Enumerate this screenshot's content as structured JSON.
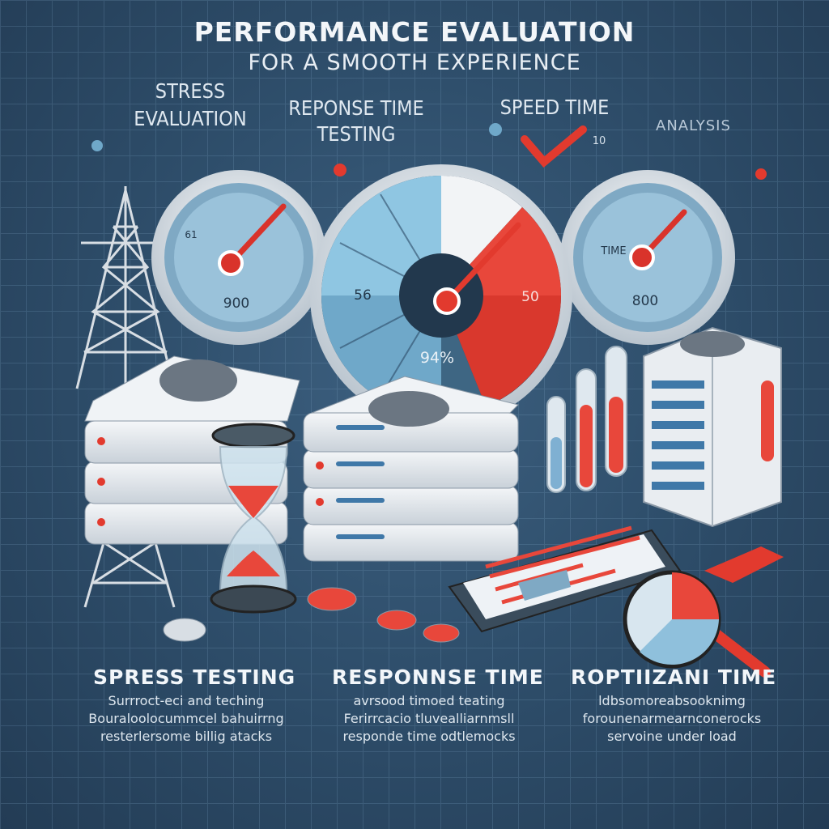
{
  "header": {
    "title": "PERFORMANCE EVALUATION",
    "subtitle": "FOR A SMOOTH EXPERIENCE"
  },
  "top_labels": {
    "stress_line1": "STRESS",
    "stress_line2": "EVALUATION",
    "response_line1": "REPONSE TIME",
    "response_line2": "TESTING",
    "speed": "SPEED TIME",
    "analysis": "ANALYSIS",
    "speed_small": "10"
  },
  "gauges": {
    "left_reading": "900",
    "left_tick": "61",
    "center_left": "56",
    "center_right": "50",
    "center_percent": "94%",
    "right_reading": "800",
    "right_label": "TIME"
  },
  "columns": [
    {
      "title": "SPRESS TESTING",
      "lines": [
        "Surrroct-eci and teching",
        "Bouraloolocummcel bahuirrng",
        "resterlersome billig atacks"
      ]
    },
    {
      "title": "RESPONNSE TIME",
      "lines": [
        "avrsood timoed teating",
        "Ferirrcacio tluvealliarnmsll",
        "responde time odtlemocks"
      ]
    },
    {
      "title": "ROPTIIZANI TIME",
      "lines": [
        "ldbsomoreabsooknimg",
        "forounenarmearnconerocks",
        "servoine under load"
      ]
    }
  ],
  "colors": {
    "background": "#2f4f6c",
    "accent_red": "#e8473b",
    "gauge_blue": "#8fc0dc",
    "server_white": "#eef1f4"
  }
}
